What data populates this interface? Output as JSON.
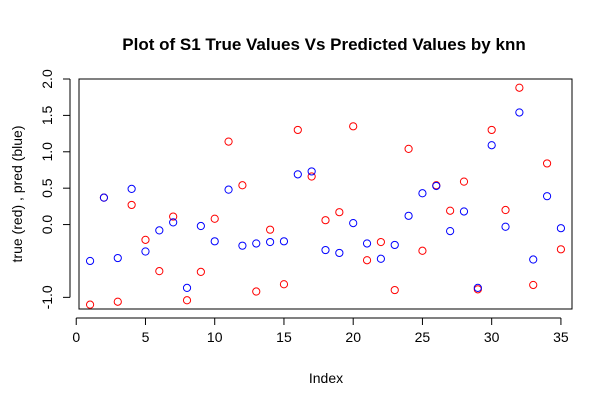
{
  "chart_data": {
    "type": "scatter",
    "title": "Plot of S1 True Values Vs Predicted Values by knn",
    "xlabel": "Index",
    "ylabel": "true (red) , pred (blue)",
    "xlim": [
      0.2,
      35.8
    ],
    "ylim": [
      -1.16,
      2.0
    ],
    "x_ticks": [
      0,
      5,
      10,
      15,
      20,
      25,
      30,
      35
    ],
    "y_ticks": [
      -1.0,
      0.0,
      0.5,
      1.0,
      1.5,
      2.0
    ],
    "y_tick_labels": [
      "-1.0",
      "0.0",
      "0.5",
      "1.0",
      "1.5",
      "2.0"
    ],
    "grid": false,
    "legend": "none",
    "marker": "open-circle",
    "x": [
      1,
      2,
      3,
      4,
      5,
      6,
      7,
      8,
      9,
      10,
      11,
      12,
      13,
      14,
      15,
      16,
      17,
      18,
      19,
      20,
      21,
      22,
      23,
      24,
      25,
      26,
      27,
      28,
      29,
      30,
      31,
      32,
      33,
      34,
      35
    ],
    "series": [
      {
        "color": "#ff0000",
        "values": [
          -1.1,
          0.37,
          -1.06,
          0.27,
          -0.21,
          -0.64,
          0.11,
          -1.04,
          -0.65,
          0.08,
          1.14,
          0.54,
          -0.92,
          -0.07,
          -0.82,
          1.3,
          0.66,
          0.06,
          0.17,
          1.35,
          -0.49,
          -0.24,
          -0.9,
          1.04,
          -0.36,
          0.54,
          0.19,
          0.59,
          -0.89,
          1.3,
          0.2,
          1.88,
          -0.83,
          0.84,
          -0.34
        ]
      },
      {
        "color": "#0000ff",
        "values": [
          -0.5,
          0.37,
          -0.46,
          0.49,
          -0.37,
          -0.08,
          0.03,
          -0.87,
          -0.02,
          -0.23,
          0.48,
          -0.29,
          -0.26,
          -0.24,
          -0.23,
          0.69,
          0.73,
          -0.35,
          -0.39,
          0.02,
          -0.26,
          -0.47,
          -0.28,
          0.12,
          0.43,
          0.53,
          -0.09,
          0.18,
          -0.87,
          1.09,
          -0.03,
          1.54,
          -0.48,
          0.39,
          -0.05
        ]
      }
    ]
  }
}
